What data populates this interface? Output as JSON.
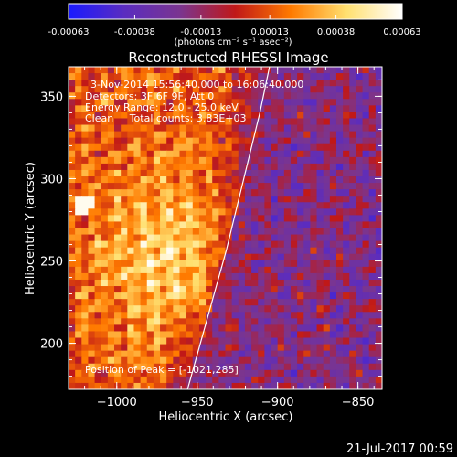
{
  "chart_data": {
    "type": "heatmap",
    "title": "Reconstructed RHESSI Image",
    "xlabel": "Heliocentric X (arcsec)",
    "ylabel": "Heliocentric Y (arcsec)",
    "xlim": [
      -1030,
      -835
    ],
    "ylim": [
      172,
      368
    ],
    "x_ticks": [
      -1000,
      -950,
      -900,
      -850
    ],
    "x_tick_labels": [
      "−1000",
      "−950",
      "−900",
      "−850"
    ],
    "y_ticks": [
      200,
      250,
      300,
      350
    ],
    "y_tick_labels": [
      "200",
      "250",
      "300",
      "350"
    ],
    "colorbar": {
      "min": -0.00063,
      "max": 0.00063,
      "tick_values": [
        -0.00063,
        -0.00038,
        -0.00013,
        0.00013,
        0.00038,
        0.00063
      ],
      "tick_labels": [
        "-0.00063",
        "-0.00038",
        "-0.00013",
        "0.00013",
        "0.00038",
        "0.00063"
      ],
      "unit_label": "(photons cm⁻² s⁻¹ asec⁻²)",
      "colors": [
        "#1a1aff",
        "#5a2cc0",
        "#7a3590",
        "#c01818",
        "#ff7a00",
        "#ffe070",
        "#ffffff"
      ]
    },
    "annotations": {
      "time": "3-Nov-2014 15:56:40.000 to 16:06:40.000",
      "detectors": "Detectors: 3F 6F 9F, Att 0",
      "energy": "Energy Range: 12.0 - 25.0 keV",
      "clean": "Clean     Total counts: 3.83E+03",
      "peak": "Position of Peak = [-1021,285]"
    },
    "peak": {
      "x": -1021,
      "y": 285
    },
    "limb_curve": {
      "x": [
        -956,
        -948,
        -940,
        -932,
        -925,
        -918,
        -911,
        -905
      ],
      "y": [
        172,
        200,
        228,
        256,
        284,
        312,
        340,
        368
      ]
    },
    "grid": false
  },
  "footer": {
    "date": "21-Jul-2017 00:59"
  }
}
